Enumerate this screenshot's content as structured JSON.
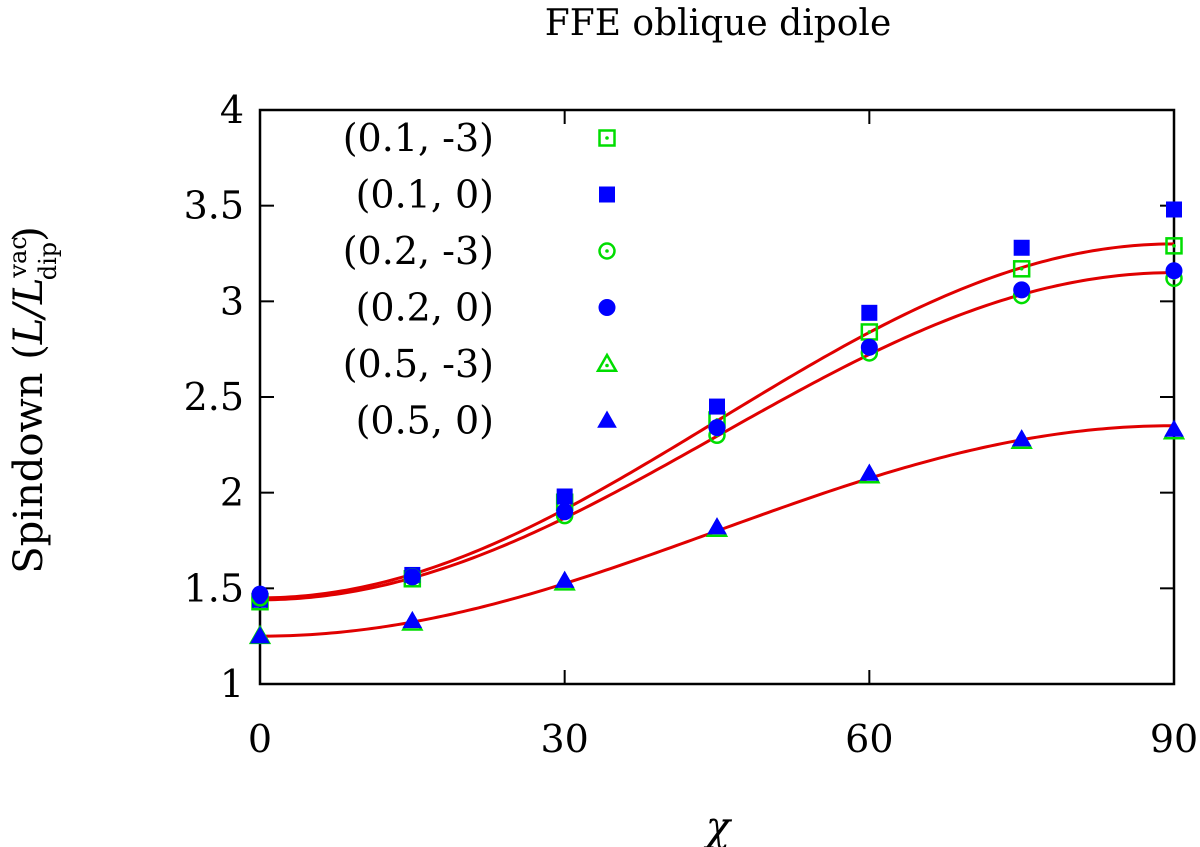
{
  "chart_data": {
    "type": "scatter",
    "title": "FFE oblique dipole",
    "xlabel": "χ",
    "ylabel": "Spindown (L/L_dip^vac)",
    "ylabel_parts": {
      "prefix": "Spindown (",
      "main": "L/L",
      "sup": "vac",
      "sub": "dip",
      "suffix": ")"
    },
    "xlim": [
      0,
      90
    ],
    "ylim": [
      1,
      4
    ],
    "xticks": [
      0,
      30,
      60,
      90
    ],
    "yticks": [
      1,
      1.5,
      2,
      2.5,
      3,
      3.5,
      4
    ],
    "ytick_labels": [
      "1",
      "1.5",
      "2",
      "2.5",
      "3",
      "3.5",
      "4"
    ],
    "legend_position": "top-left",
    "x": [
      0,
      15,
      30,
      45,
      60,
      75,
      90
    ],
    "series": [
      {
        "name": "(0.1, -3)",
        "marker": "open-square",
        "color": "#00dd00",
        "values": [
          1.43,
          1.55,
          1.95,
          2.38,
          2.84,
          3.17,
          3.29
        ]
      },
      {
        "name": "(0.1, 0)",
        "marker": "filled-square",
        "color": "#0000ff",
        "values": [
          1.44,
          1.57,
          1.98,
          2.45,
          2.94,
          3.28,
          3.48
        ]
      },
      {
        "name": "(0.2, -3)",
        "marker": "open-circle",
        "color": "#00dd00",
        "values": [
          1.45,
          1.56,
          1.88,
          2.3,
          2.73,
          3.03,
          3.12
        ]
      },
      {
        "name": "(0.2, 0)",
        "marker": "filled-circle",
        "color": "#0000ff",
        "values": [
          1.47,
          1.56,
          1.9,
          2.34,
          2.76,
          3.06,
          3.16
        ]
      },
      {
        "name": "(0.5, -3)",
        "marker": "open-triangle",
        "color": "#00dd00",
        "values": [
          1.25,
          1.32,
          1.53,
          1.81,
          2.09,
          2.27,
          2.32
        ]
      },
      {
        "name": "(0.5, 0)",
        "marker": "filled-triangle",
        "color": "#0000ff",
        "values": [
          1.25,
          1.33,
          1.54,
          1.82,
          2.1,
          2.28,
          2.33
        ]
      }
    ],
    "fits": [
      {
        "name": "fit-upper",
        "color": "#e00000",
        "y0": 1.45,
        "y90": 3.3
      },
      {
        "name": "fit-middle",
        "color": "#e00000",
        "y0": 1.44,
        "y90": 3.15
      },
      {
        "name": "fit-lower",
        "color": "#e00000",
        "y0": 1.25,
        "y90": 2.35
      }
    ]
  }
}
